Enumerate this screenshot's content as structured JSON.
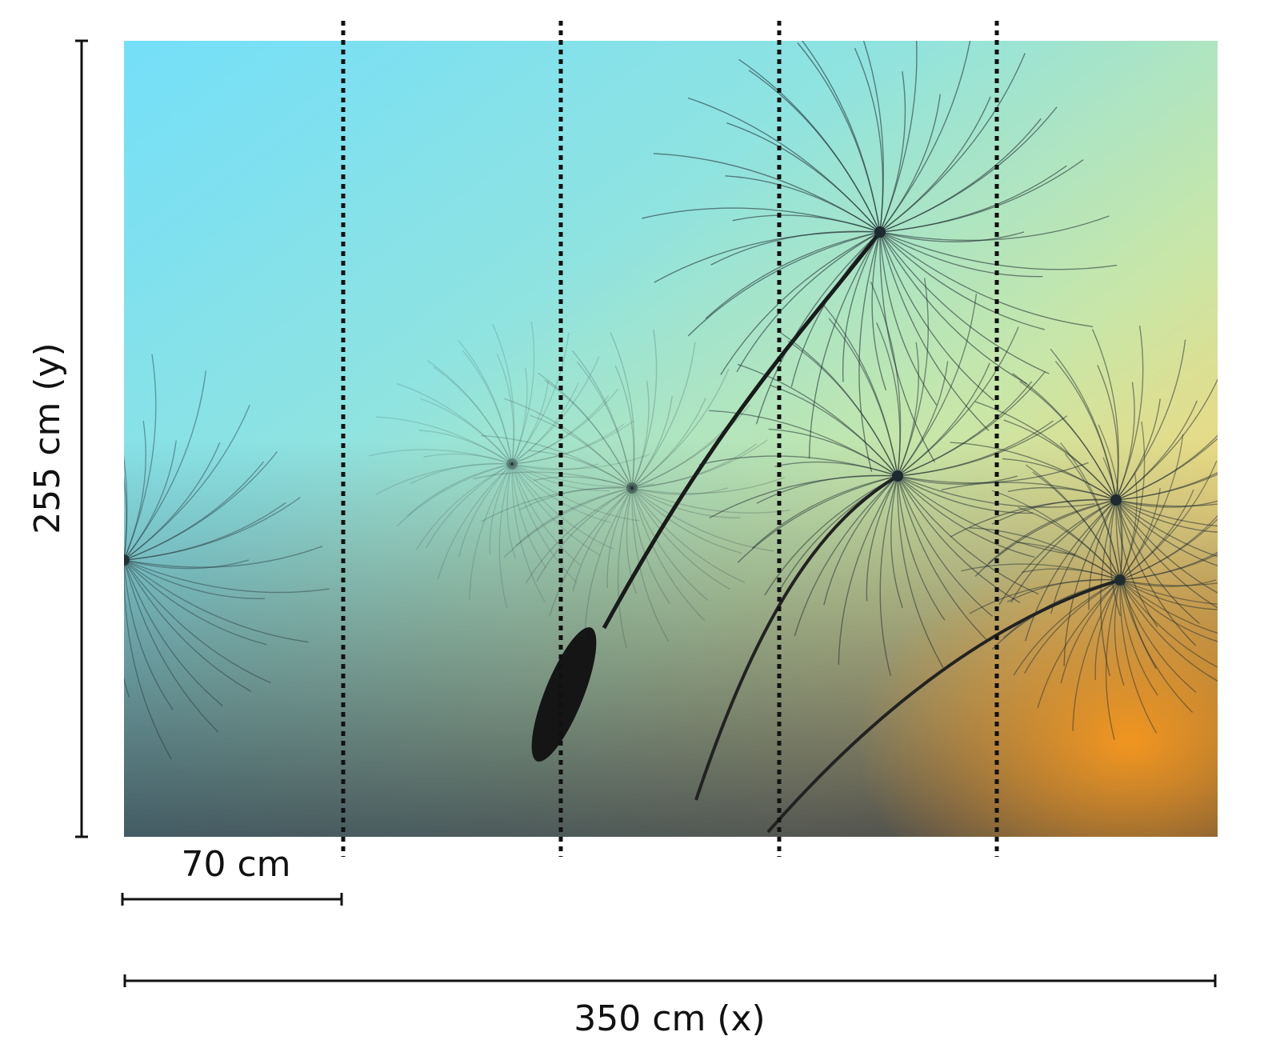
{
  "labels": {
    "height": "255 cm (y)",
    "panel_width": "70 cm",
    "total_width": "350 cm (x)"
  }
}
